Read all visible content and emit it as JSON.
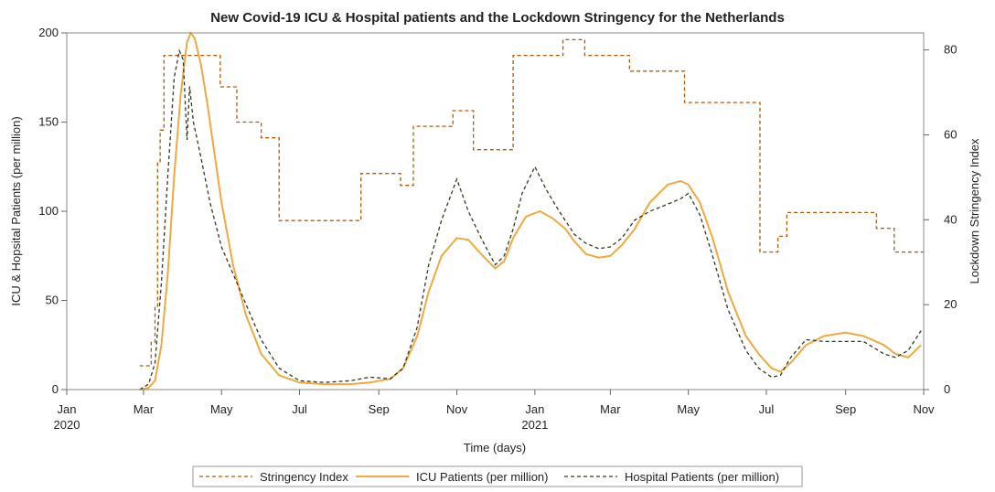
{
  "chart_data": {
    "type": "line",
    "title": "New Covid-19 ICU & Hospital patients and the Lockdown Stringency for the Netherlands",
    "xlabel": "Time (days)",
    "ylabel_left": "ICU & Hopsital Patients (per million)",
    "ylabel_right": "Lockdown Stringency Index",
    "x_range": [
      "2020-01-01",
      "2021-11-01"
    ],
    "ylim_left": [
      0,
      200
    ],
    "ylim_right": [
      0,
      84
    ],
    "grid": false,
    "legend_position": "bottom",
    "x_ticks": [
      {
        "date": "2020-01-01",
        "label": "Jan",
        "sublabel": "2020"
      },
      {
        "date": "2020-03-01",
        "label": "Mar",
        "sublabel": ""
      },
      {
        "date": "2020-05-01",
        "label": "May",
        "sublabel": ""
      },
      {
        "date": "2020-07-01",
        "label": "Jul",
        "sublabel": ""
      },
      {
        "date": "2020-09-01",
        "label": "Sep",
        "sublabel": ""
      },
      {
        "date": "2020-11-01",
        "label": "Nov",
        "sublabel": ""
      },
      {
        "date": "2021-01-01",
        "label": "Jan",
        "sublabel": "2021"
      },
      {
        "date": "2021-03-01",
        "label": "Mar",
        "sublabel": ""
      },
      {
        "date": "2021-05-01",
        "label": "May",
        "sublabel": ""
      },
      {
        "date": "2021-07-01",
        "label": "Jul",
        "sublabel": ""
      },
      {
        "date": "2021-09-01",
        "label": "Sep",
        "sublabel": ""
      },
      {
        "date": "2021-11-01",
        "label": "Nov",
        "sublabel": ""
      }
    ],
    "y_ticks_left": [
      "0",
      "50",
      "100",
      "150",
      "200"
    ],
    "y_ticks_right": [
      "0",
      "20",
      "40",
      "60",
      "80"
    ],
    "series": [
      {
        "name": "Stringency Index",
        "axis": "right",
        "color": "#b35806",
        "style": "dashed",
        "step": true,
        "points": [
          [
            "2020-02-27",
            5.6
          ],
          [
            "2020-03-07",
            11.1
          ],
          [
            "2020-03-10",
            19.4
          ],
          [
            "2020-03-12",
            53.7
          ],
          [
            "2020-03-14",
            61.1
          ],
          [
            "2020-03-17",
            78.7
          ],
          [
            "2020-04-30",
            71.3
          ],
          [
            "2020-05-13",
            63.0
          ],
          [
            "2020-06-01",
            59.3
          ],
          [
            "2020-06-15",
            39.8
          ],
          [
            "2020-08-18",
            50.9
          ],
          [
            "2020-09-18",
            48.1
          ],
          [
            "2020-09-28",
            62.0
          ],
          [
            "2020-10-29",
            65.7
          ],
          [
            "2020-11-14",
            56.5
          ],
          [
            "2020-12-15",
            78.7
          ],
          [
            "2021-01-23",
            82.4
          ],
          [
            "2021-02-09",
            78.7
          ],
          [
            "2021-03-16",
            75.0
          ],
          [
            "2021-04-28",
            67.6
          ],
          [
            "2021-06-26",
            32.4
          ],
          [
            "2021-07-10",
            36.1
          ],
          [
            "2021-07-17",
            41.7
          ],
          [
            "2021-09-25",
            38.0
          ],
          [
            "2021-10-09",
            32.4
          ],
          [
            "2021-11-01",
            32.4
          ]
        ]
      },
      {
        "name": "ICU Patients (per million)",
        "axis": "left",
        "color": "#f0a941",
        "style": "solid",
        "step": false,
        "points": [
          [
            "2020-02-27",
            0
          ],
          [
            "2020-03-05",
            1
          ],
          [
            "2020-03-10",
            5
          ],
          [
            "2020-03-15",
            25
          ],
          [
            "2020-03-20",
            65
          ],
          [
            "2020-03-25",
            120
          ],
          [
            "2020-03-30",
            165
          ],
          [
            "2020-04-04",
            195
          ],
          [
            "2020-04-07",
            200
          ],
          [
            "2020-04-10",
            197
          ],
          [
            "2020-04-15",
            182
          ],
          [
            "2020-04-20",
            160
          ],
          [
            "2020-04-25",
            135
          ],
          [
            "2020-05-01",
            105
          ],
          [
            "2020-05-10",
            70
          ],
          [
            "2020-05-20",
            42
          ],
          [
            "2020-06-01",
            20
          ],
          [
            "2020-06-15",
            8
          ],
          [
            "2020-07-01",
            4
          ],
          [
            "2020-07-20",
            3
          ],
          [
            "2020-08-10",
            3
          ],
          [
            "2020-08-25",
            4
          ],
          [
            "2020-09-10",
            6
          ],
          [
            "2020-09-20",
            12
          ],
          [
            "2020-10-01",
            30
          ],
          [
            "2020-10-10",
            55
          ],
          [
            "2020-10-20",
            75
          ],
          [
            "2020-11-01",
            85
          ],
          [
            "2020-11-10",
            84
          ],
          [
            "2020-11-20",
            76
          ],
          [
            "2020-12-01",
            68
          ],
          [
            "2020-12-08",
            72
          ],
          [
            "2020-12-15",
            85
          ],
          [
            "2020-12-25",
            97
          ],
          [
            "2021-01-05",
            100
          ],
          [
            "2021-01-15",
            96
          ],
          [
            "2021-01-25",
            90
          ],
          [
            "2021-02-01",
            83
          ],
          [
            "2021-02-10",
            76
          ],
          [
            "2021-02-20",
            74
          ],
          [
            "2021-03-01",
            75
          ],
          [
            "2021-03-10",
            81
          ],
          [
            "2021-03-20",
            90
          ],
          [
            "2021-04-01",
            105
          ],
          [
            "2021-04-15",
            115
          ],
          [
            "2021-04-25",
            117
          ],
          [
            "2021-05-01",
            115
          ],
          [
            "2021-05-10",
            105
          ],
          [
            "2021-05-20",
            85
          ],
          [
            "2021-06-01",
            55
          ],
          [
            "2021-06-15",
            30
          ],
          [
            "2021-06-25",
            20
          ],
          [
            "2021-07-05",
            12
          ],
          [
            "2021-07-12",
            10
          ],
          [
            "2021-07-20",
            15
          ],
          [
            "2021-08-01",
            25
          ],
          [
            "2021-08-15",
            30
          ],
          [
            "2021-09-01",
            32
          ],
          [
            "2021-09-15",
            30
          ],
          [
            "2021-10-01",
            25
          ],
          [
            "2021-10-10",
            20
          ],
          [
            "2021-10-20",
            18
          ],
          [
            "2021-10-30",
            25
          ]
        ]
      },
      {
        "name": "Hospital Patients (per million)",
        "axis": "left",
        "color": "#2f3b1f",
        "style": "dashed",
        "step": false,
        "points": [
          [
            "2020-02-27",
            0
          ],
          [
            "2020-03-05",
            3
          ],
          [
            "2020-03-10",
            15
          ],
          [
            "2020-03-15",
            60
          ],
          [
            "2020-03-20",
            120
          ],
          [
            "2020-03-25",
            175
          ],
          [
            "2020-03-29",
            190
          ],
          [
            "2020-04-01",
            185
          ],
          [
            "2020-04-04",
            140
          ],
          [
            "2020-04-06",
            170
          ],
          [
            "2020-04-09",
            150
          ],
          [
            "2020-04-15",
            130
          ],
          [
            "2020-04-22",
            105
          ],
          [
            "2020-05-01",
            80
          ],
          [
            "2020-05-10",
            65
          ],
          [
            "2020-05-20",
            48
          ],
          [
            "2020-06-01",
            28
          ],
          [
            "2020-06-15",
            12
          ],
          [
            "2020-07-01",
            5
          ],
          [
            "2020-07-20",
            4
          ],
          [
            "2020-08-10",
            5
          ],
          [
            "2020-08-25",
            7
          ],
          [
            "2020-09-10",
            6
          ],
          [
            "2020-09-20",
            12
          ],
          [
            "2020-10-01",
            35
          ],
          [
            "2020-10-10",
            70
          ],
          [
            "2020-10-20",
            95
          ],
          [
            "2020-11-01",
            118
          ],
          [
            "2020-11-10",
            100
          ],
          [
            "2020-11-20",
            85
          ],
          [
            "2020-12-01",
            70
          ],
          [
            "2020-12-08",
            75
          ],
          [
            "2020-12-15",
            90
          ],
          [
            "2020-12-22",
            110
          ],
          [
            "2021-01-01",
            125
          ],
          [
            "2021-01-10",
            112
          ],
          [
            "2021-01-20",
            100
          ],
          [
            "2021-02-01",
            87
          ],
          [
            "2021-02-10",
            82
          ],
          [
            "2021-02-20",
            79
          ],
          [
            "2021-03-01",
            80
          ],
          [
            "2021-03-10",
            85
          ],
          [
            "2021-03-20",
            95
          ],
          [
            "2021-04-01",
            100
          ],
          [
            "2021-04-15",
            104
          ],
          [
            "2021-04-25",
            107
          ],
          [
            "2021-05-01",
            110
          ],
          [
            "2021-05-10",
            98
          ],
          [
            "2021-05-20",
            75
          ],
          [
            "2021-06-01",
            45
          ],
          [
            "2021-06-15",
            22
          ],
          [
            "2021-06-25",
            12
          ],
          [
            "2021-07-05",
            7
          ],
          [
            "2021-07-12",
            8
          ],
          [
            "2021-07-20",
            18
          ],
          [
            "2021-08-01",
            28
          ],
          [
            "2021-08-15",
            27
          ],
          [
            "2021-09-01",
            27
          ],
          [
            "2021-09-15",
            27
          ],
          [
            "2021-10-01",
            20
          ],
          [
            "2021-10-10",
            18
          ],
          [
            "2021-10-20",
            22
          ],
          [
            "2021-10-30",
            33
          ]
        ]
      }
    ]
  }
}
